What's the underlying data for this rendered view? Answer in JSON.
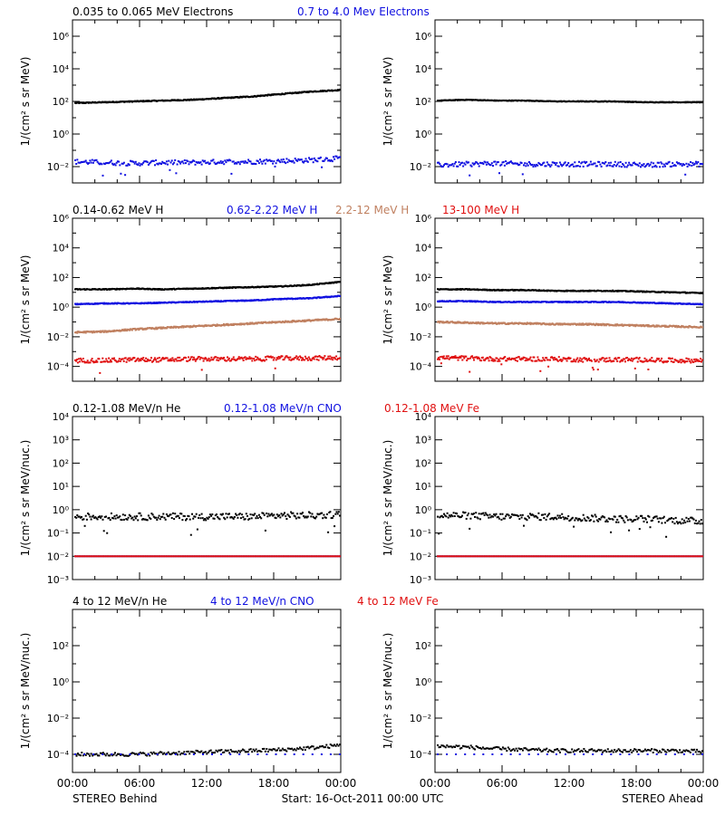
{
  "footer": {
    "left": "STEREO Behind",
    "center": "Start: 16-Oct-2011 00:00 UTC",
    "right": "STEREO Ahead"
  },
  "x_ticks": [
    "00:00",
    "06:00",
    "12:00",
    "18:00",
    "00:00"
  ],
  "colors": {
    "black": "#000000",
    "blue": "#1010e0",
    "tan": "#c08060",
    "red": "#e01010"
  },
  "chart_data": [
    {
      "type": "scatter",
      "id": "electrons",
      "legend": [
        {
          "label": "0.035 to 0.065 MeV Electrons",
          "color": "#000000"
        },
        {
          "label": "0.7 to 4.0 Mev Electrons",
          "color": "#1010e0"
        }
      ],
      "ylabel": "1/(cm² s sr MeV)",
      "ylog_range": [
        -3,
        7
      ],
      "y_tick_exponents": [
        -2,
        0,
        2,
        4,
        6
      ],
      "y_tick_labels": [
        "10⁻²",
        "10⁰",
        "10²",
        "10⁴",
        "10⁶"
      ],
      "xlim_hours": [
        0,
        24
      ],
      "panels": [
        {
          "name": "STEREO Behind",
          "series": [
            {
              "color": "#000000",
              "log_values": [
                1.9,
                1.95,
                2.0,
                2.05,
                2.1,
                2.2,
                2.3,
                2.45,
                2.6,
                2.7
              ],
              "scatter": 0.03,
              "n": 400
            },
            {
              "color": "#1010e0",
              "log_values": [
                -1.7,
                -1.75,
                -1.8,
                -1.75,
                -1.75,
                -1.7,
                -1.7,
                -1.65,
                -1.6,
                -1.5
              ],
              "scatter": 0.15,
              "n": 250
            }
          ]
        },
        {
          "name": "STEREO Ahead",
          "series": [
            {
              "color": "#000000",
              "log_values": [
                2.05,
                2.1,
                2.05,
                2.05,
                2.0,
                2.0,
                2.0,
                1.95,
                1.95,
                1.95
              ],
              "scatter": 0.02,
              "n": 400
            },
            {
              "color": "#1010e0",
              "log_values": [
                -1.9,
                -1.85,
                -1.8,
                -1.85,
                -1.85,
                -1.85,
                -1.85,
                -1.9,
                -1.85,
                -1.85
              ],
              "scatter": 0.15,
              "n": 250
            }
          ]
        }
      ]
    },
    {
      "type": "scatter",
      "id": "protons",
      "legend": [
        {
          "label": "0.14-0.62 MeV H",
          "color": "#000000"
        },
        {
          "label": "0.62-2.22 MeV H",
          "color": "#1010e0"
        },
        {
          "label": "2.2-12 MeV H",
          "color": "#c08060"
        },
        {
          "label": "13-100 MeV H",
          "color": "#e01010"
        }
      ],
      "ylabel": "1/(cm² s sr MeV)",
      "ylog_range": [
        -5,
        6
      ],
      "y_tick_exponents": [
        -4,
        -2,
        0,
        2,
        4,
        6
      ],
      "y_tick_labels": [
        "10⁻⁴",
        "10⁻²",
        "10⁰",
        "10²",
        "10⁴",
        "10⁶"
      ],
      "xlim_hours": [
        0,
        24
      ],
      "panels": [
        {
          "name": "STEREO Behind",
          "series": [
            {
              "color": "#000000",
              "log_values": [
                1.2,
                1.2,
                1.25,
                1.2,
                1.25,
                1.3,
                1.35,
                1.4,
                1.5,
                1.7
              ],
              "scatter": 0.03,
              "n": 400
            },
            {
              "color": "#1010e0",
              "log_values": [
                0.2,
                0.25,
                0.25,
                0.3,
                0.35,
                0.4,
                0.45,
                0.55,
                0.6,
                0.75
              ],
              "scatter": 0.03,
              "n": 400
            },
            {
              "color": "#c08060",
              "log_values": [
                -1.7,
                -1.65,
                -1.5,
                -1.4,
                -1.3,
                -1.2,
                -1.1,
                -1.0,
                -0.9,
                -0.8
              ],
              "scatter": 0.05,
              "n": 400
            },
            {
              "color": "#e01010",
              "log_values": [
                -3.6,
                -3.6,
                -3.55,
                -3.55,
                -3.5,
                -3.5,
                -3.5,
                -3.45,
                -3.45,
                -3.4
              ],
              "scatter": 0.15,
              "n": 300
            }
          ]
        },
        {
          "name": "STEREO Ahead",
          "series": [
            {
              "color": "#000000",
              "log_values": [
                1.2,
                1.2,
                1.15,
                1.15,
                1.1,
                1.1,
                1.1,
                1.05,
                1.0,
                0.95
              ],
              "scatter": 0.03,
              "n": 400
            },
            {
              "color": "#1010e0",
              "log_values": [
                0.4,
                0.4,
                0.35,
                0.35,
                0.35,
                0.35,
                0.35,
                0.3,
                0.25,
                0.2
              ],
              "scatter": 0.03,
              "n": 400
            },
            {
              "color": "#c08060",
              "log_values": [
                -1.0,
                -1.05,
                -1.1,
                -1.1,
                -1.15,
                -1.15,
                -1.2,
                -1.25,
                -1.3,
                -1.35
              ],
              "scatter": 0.05,
              "n": 400
            },
            {
              "color": "#e01010",
              "log_values": [
                -3.4,
                -3.45,
                -3.5,
                -3.5,
                -3.5,
                -3.55,
                -3.55,
                -3.55,
                -3.6,
                -3.6
              ],
              "scatter": 0.15,
              "n": 300
            }
          ]
        }
      ]
    },
    {
      "type": "scatter",
      "id": "heavy-ions-low",
      "legend": [
        {
          "label": "0.12-1.08 MeV/n He",
          "color": "#000000"
        },
        {
          "label": "0.12-1.08 MeV/n CNO",
          "color": "#1010e0"
        },
        {
          "label": "0.12-1.08 MeV Fe",
          "color": "#e01010"
        }
      ],
      "ylabel": "1/(cm² s sr MeV/nuc.)",
      "ylog_range": [
        -3,
        4
      ],
      "y_tick_exponents": [
        -3,
        -2,
        -1,
        0,
        1,
        2,
        3,
        4
      ],
      "y_tick_labels": [
        "10⁻³",
        "10⁻²",
        "10⁻¹",
        "10⁰",
        "10¹",
        "10²",
        "10³",
        "10⁴"
      ],
      "xlim_hours": [
        0,
        24
      ],
      "panels": [
        {
          "name": "STEREO Behind",
          "series": [
            {
              "color": "#000000",
              "log_values": [
                -0.3,
                -0.3,
                -0.3,
                -0.3,
                -0.3,
                -0.3,
                -0.3,
                -0.25,
                -0.25,
                -0.2
              ],
              "scatter": 0.15,
              "n": 250
            },
            {
              "color": "#1010e0",
              "log_values": [
                -2.0,
                -2.0,
                -2.0,
                -2.0,
                -2.0,
                -2.0,
                -2.0,
                -2.0,
                -2.0,
                -2.0
              ],
              "scatter": 0.0,
              "n": 180
            },
            {
              "color": "#e01010",
              "log_values": [
                -2.0,
                -2.0,
                -2.0,
                -2.0,
                -2.0,
                -2.0,
                -2.0,
                -2.0,
                -2.0,
                -2.0
              ],
              "scatter": 0.0,
              "n": 180
            }
          ]
        },
        {
          "name": "STEREO Ahead",
          "series": [
            {
              "color": "#000000",
              "log_values": [
                -0.25,
                -0.25,
                -0.3,
                -0.3,
                -0.3,
                -0.35,
                -0.4,
                -0.4,
                -0.45,
                -0.5
              ],
              "scatter": 0.15,
              "n": 250
            },
            {
              "color": "#1010e0",
              "log_values": [
                -2.0,
                -2.0,
                -2.0,
                -2.0,
                -2.0,
                -2.0,
                -2.0,
                -2.0,
                -2.0,
                -2.0
              ],
              "scatter": 0.0,
              "n": 180
            },
            {
              "color": "#e01010",
              "log_values": [
                -2.0,
                -2.0,
                -2.0,
                -2.0,
                -2.0,
                -2.0,
                -2.0,
                -2.0,
                -2.0,
                -2.0
              ],
              "scatter": 0.0,
              "n": 180
            }
          ]
        }
      ]
    },
    {
      "type": "scatter",
      "id": "heavy-ions-high",
      "legend": [
        {
          "label": "4 to 12 MeV/n He",
          "color": "#000000"
        },
        {
          "label": "4 to 12 MeV/n CNO",
          "color": "#1010e0"
        },
        {
          "label": "4 to 12 MeV Fe",
          "color": "#e01010"
        }
      ],
      "ylabel": "1/(cm² s sr MeV/nuc.)",
      "ylog_range": [
        -5,
        4
      ],
      "y_tick_exponents": [
        -4,
        -2,
        0,
        2
      ],
      "y_tick_labels": [
        "10⁻⁴",
        "10⁻²",
        "10⁰",
        "10²"
      ],
      "xlim_hours": [
        0,
        24
      ],
      "panels": [
        {
          "name": "STEREO Behind",
          "series": [
            {
              "color": "#000000",
              "log_values": [
                -4.0,
                -4.0,
                -4.0,
                -3.95,
                -3.9,
                -3.85,
                -3.8,
                -3.75,
                -3.65,
                -3.5
              ],
              "scatter": 0.1,
              "n": 200
            },
            {
              "color": "#1010e0",
              "log_values": [
                -4.0,
                -4.0,
                -4.0,
                -4.0,
                -4.0,
                -4.0,
                -4.0,
                -4.0,
                -4.0,
                -4.0
              ],
              "scatter": 0.0,
              "n": 30
            }
          ]
        },
        {
          "name": "STEREO Ahead",
          "series": [
            {
              "color": "#000000",
              "log_values": [
                -3.55,
                -3.6,
                -3.7,
                -3.75,
                -3.8,
                -3.8,
                -3.8,
                -3.8,
                -3.8,
                -3.85
              ],
              "scatter": 0.1,
              "n": 200
            },
            {
              "color": "#1010e0",
              "log_values": [
                -4.0,
                -4.0,
                -4.0,
                -4.0,
                -4.0,
                -4.0,
                -4.0,
                -4.0,
                -4.0,
                -4.0
              ],
              "scatter": 0.0,
              "n": 30
            }
          ]
        }
      ]
    }
  ]
}
